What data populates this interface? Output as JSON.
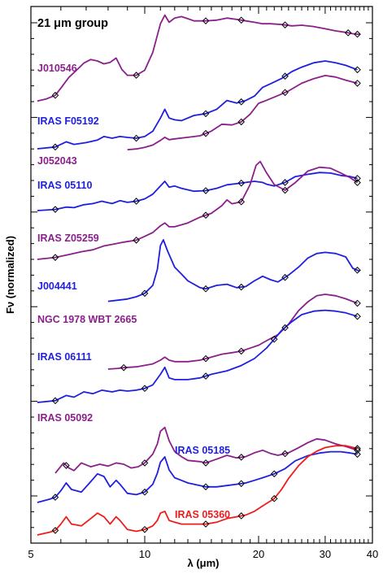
{
  "chart_data": {
    "type": "line",
    "title": "21 μm group",
    "xlabel": "λ (μm)",
    "ylabel": "Fν (normalized)",
    "x_scale": "log",
    "xlim": [
      5,
      40
    ],
    "x_ticks": [
      5,
      10,
      20,
      30,
      40
    ],
    "y_ticks": "none",
    "colors": {
      "purple": "#8b1f8b",
      "blue": "#1f1fe0",
      "red": "#ee1c1c"
    },
    "marker": "open-diamond",
    "series": [
      {
        "name": "J010546",
        "color": "purple",
        "marker_x": [
          5.8,
          9.5,
          14.5,
          18.0,
          23.5,
          34.5,
          36.5
        ],
        "x": [
          5.2,
          5.5,
          5.8,
          6.0,
          6.3,
          6.6,
          6.9,
          7.2,
          7.5,
          7.8,
          8.1,
          8.4,
          8.7,
          9.0,
          9.5,
          10.0,
          10.5,
          11.0,
          11.3,
          11.6,
          12.0,
          12.5,
          13.0,
          13.5,
          14.5,
          15.5,
          16.5,
          17.5,
          18.5,
          19.5,
          20.5,
          21.5,
          23.0,
          24.5,
          26.0,
          28.0,
          30.0,
          32.0,
          34.0,
          35.5,
          37.0
        ],
        "y": [
          0.02,
          0.05,
          0.1,
          0.2,
          0.35,
          0.45,
          0.55,
          0.6,
          0.58,
          0.54,
          0.56,
          0.62,
          0.46,
          0.38,
          0.38,
          0.45,
          0.7,
          1.1,
          1.22,
          1.12,
          1.18,
          1.2,
          1.17,
          1.14,
          1.14,
          1.15,
          1.18,
          1.16,
          1.14,
          1.12,
          1.1,
          1.1,
          1.09,
          1.07,
          1.08,
          1.06,
          1.03,
          1.0,
          0.98,
          0.96,
          0.95
        ]
      },
      {
        "name": "IRAS F05192",
        "color": "blue",
        "marker_x": [
          5.8,
          9.5,
          14.5,
          18.0,
          23.5,
          36.5
        ],
        "x": [
          5.2,
          5.8,
          6.2,
          6.5,
          7.0,
          7.5,
          7.8,
          8.2,
          8.6,
          9.0,
          9.5,
          10.0,
          10.5,
          11.0,
          11.3,
          11.6,
          12.0,
          12.5,
          13.5,
          14.5,
          15.5,
          16.5,
          17.5,
          18.5,
          19.5,
          20.5,
          21.5,
          23.0,
          24.5,
          26.0,
          28.0,
          30.0,
          32.0,
          34.0,
          36.5
        ],
        "y": [
          0.0,
          0.02,
          0.08,
          0.05,
          0.07,
          0.1,
          0.14,
          0.12,
          0.14,
          0.13,
          0.12,
          0.14,
          0.2,
          0.35,
          0.45,
          0.35,
          0.33,
          0.32,
          0.38,
          0.4,
          0.45,
          0.55,
          0.52,
          0.55,
          0.6,
          0.7,
          0.74,
          0.8,
          0.88,
          0.93,
          0.98,
          1.0,
          0.98,
          0.95,
          0.9
        ]
      },
      {
        "name": "J052043",
        "color": "purple",
        "marker_x": [
          14.5,
          18.0,
          23.5,
          36.5
        ],
        "x": [
          9.0,
          9.5,
          10.0,
          10.5,
          11.0,
          11.3,
          11.6,
          12.0,
          13.0,
          14.0,
          15.0,
          16.0,
          17.0,
          18.0,
          19.0,
          20.0,
          21.0,
          22.5,
          24.0,
          26.0,
          28.0,
          30.0,
          32.0,
          34.0,
          36.5
        ],
        "y": [
          0.02,
          0.03,
          0.05,
          0.08,
          0.14,
          0.18,
          0.15,
          0.16,
          0.18,
          0.2,
          0.26,
          0.35,
          0.34,
          0.38,
          0.48,
          0.62,
          0.66,
          0.72,
          0.78,
          0.88,
          0.94,
          0.98,
          0.96,
          0.92,
          0.88
        ]
      },
      {
        "name": "IRAS 05110",
        "color": "blue",
        "marker_x": [
          5.8,
          9.5,
          14.5,
          18.0,
          23.5,
          36.5
        ],
        "x": [
          5.2,
          5.8,
          6.2,
          6.5,
          6.9,
          7.3,
          7.7,
          8.2,
          8.6,
          9.0,
          9.5,
          10.0,
          10.5,
          11.0,
          11.3,
          11.6,
          12.0,
          12.5,
          13.5,
          14.5,
          15.5,
          16.5,
          17.5,
          18.5,
          19.5,
          20.5,
          21.0,
          22.0,
          23.5,
          25.0,
          27.0,
          29.0,
          31.0,
          33.0,
          35.0,
          36.5
        ],
        "y": [
          0.0,
          0.02,
          0.06,
          0.05,
          0.1,
          0.12,
          0.16,
          0.12,
          0.17,
          0.14,
          0.16,
          0.2,
          0.28,
          0.42,
          0.5,
          0.4,
          0.42,
          0.38,
          0.33,
          0.34,
          0.38,
          0.44,
          0.46,
          0.48,
          0.5,
          0.48,
          0.45,
          0.42,
          0.48,
          0.58,
          0.62,
          0.65,
          0.64,
          0.6,
          0.58,
          0.55
        ]
      },
      {
        "name": "IRAS Z05259",
        "color": "purple",
        "marker_x": [
          5.8,
          9.5,
          14.5,
          18.0,
          23.5,
          36.5
        ],
        "x": [
          5.2,
          5.8,
          6.3,
          6.8,
          7.3,
          7.8,
          8.3,
          8.8,
          9.5,
          10.0,
          10.5,
          11.0,
          11.3,
          11.6,
          12.0,
          13.0,
          14.0,
          15.0,
          16.0,
          16.5,
          17.0,
          18.0,
          19.0,
          19.7,
          20.2,
          21.0,
          22.0,
          23.5,
          25.0,
          27.0,
          29.0,
          31.0,
          33.0,
          35.0,
          36.5
        ],
        "y": [
          0.0,
          0.02,
          0.05,
          0.08,
          0.1,
          0.14,
          0.16,
          0.18,
          0.2,
          0.24,
          0.28,
          0.35,
          0.38,
          0.34,
          0.34,
          0.38,
          0.44,
          0.48,
          0.56,
          0.62,
          0.58,
          0.6,
          0.78,
          0.98,
          1.02,
          0.9,
          0.78,
          0.72,
          0.8,
          0.92,
          0.96,
          0.95,
          0.9,
          0.85,
          0.8
        ]
      },
      {
        "name": "J004441",
        "color": "blue",
        "marker_x": [
          10.0,
          14.5,
          18.0,
          23.5,
          36.5
        ],
        "x": [
          8.0,
          8.5,
          9.0,
          9.5,
          10.0,
          10.5,
          10.8,
          11.0,
          11.2,
          11.5,
          12.0,
          12.5,
          13.0,
          14.0,
          14.5,
          15.5,
          16.5,
          17.5,
          18.5,
          19.5,
          20.5,
          21.5,
          22.5,
          24.0,
          25.5,
          27.0,
          28.5,
          30.0,
          32.0,
          34.0,
          35.5,
          37.0
        ],
        "y": [
          0.02,
          0.04,
          0.06,
          0.1,
          0.16,
          0.3,
          0.58,
          1.0,
          1.1,
          0.9,
          0.62,
          0.5,
          0.38,
          0.26,
          0.24,
          0.3,
          0.32,
          0.26,
          0.28,
          0.38,
          0.46,
          0.4,
          0.36,
          0.48,
          0.62,
          0.78,
          0.86,
          0.88,
          0.86,
          0.8,
          0.6,
          0.55
        ]
      },
      {
        "name": "NGC 1978 WBT 2665",
        "color": "purple",
        "marker_x": [
          8.8,
          14.5,
          18.0,
          23.5,
          36.5
        ],
        "x": [
          8.0,
          8.5,
          8.8,
          9.5,
          10.0,
          10.5,
          11.0,
          11.3,
          11.6,
          12.0,
          13.0,
          14.0,
          15.0,
          16.0,
          17.0,
          18.0,
          19.0,
          20.0,
          21.0,
          22.5,
          24.0,
          25.5,
          27.0,
          28.5,
          30.0,
          32.0,
          34.0,
          36.5
        ],
        "y": [
          0.0,
          0.01,
          0.02,
          0.03,
          0.05,
          0.07,
          0.12,
          0.16,
          0.12,
          0.1,
          0.1,
          0.12,
          0.16,
          0.2,
          0.22,
          0.24,
          0.28,
          0.32,
          0.38,
          0.46,
          0.6,
          0.78,
          0.9,
          0.98,
          1.0,
          0.98,
          0.94,
          0.88
        ]
      },
      {
        "name": "IRAS 06111",
        "color": "blue",
        "marker_x": [
          5.8,
          10.0,
          14.5,
          22.0,
          36.5
        ],
        "x": [
          5.2,
          5.8,
          6.2,
          6.5,
          6.9,
          7.3,
          7.7,
          8.2,
          8.6,
          9.0,
          9.5,
          10.0,
          10.5,
          11.0,
          11.3,
          11.6,
          12.0,
          13.0,
          14.0,
          15.0,
          16.5,
          18.0,
          19.5,
          21.0,
          22.0,
          23.0,
          24.5,
          26.0,
          28.0,
          30.0,
          32.0,
          34.0,
          36.5
        ],
        "y": [
          0.0,
          0.02,
          0.08,
          0.06,
          0.12,
          0.1,
          0.14,
          0.12,
          0.14,
          0.13,
          0.14,
          0.16,
          0.2,
          0.32,
          0.4,
          0.28,
          0.26,
          0.26,
          0.28,
          0.32,
          0.36,
          0.42,
          0.5,
          0.62,
          0.72,
          0.82,
          0.92,
          1.0,
          1.04,
          1.05,
          1.04,
          1.02,
          0.98
        ]
      },
      {
        "name": "IRAS 05092",
        "color": "purple",
        "marker_x": [
          6.2,
          10.0,
          14.5,
          18.0,
          23.5,
          36.5
        ],
        "x": [
          5.8,
          6.1,
          6.3,
          6.5,
          6.8,
          7.2,
          7.6,
          8.0,
          8.4,
          8.8,
          9.2,
          9.6,
          10.0,
          10.5,
          10.8,
          11.0,
          11.3,
          11.6,
          12.0,
          12.5,
          13.0,
          14.0,
          14.5,
          15.5,
          16.5,
          17.5,
          18.5,
          19.5,
          20.5,
          21.5,
          22.5,
          24.0,
          25.5,
          27.0,
          28.5,
          30.0,
          32.0,
          34.0,
          36.5
        ],
        "y": [
          0.04,
          0.2,
          0.12,
          0.08,
          0.2,
          0.14,
          0.18,
          0.15,
          0.2,
          0.18,
          0.12,
          0.14,
          0.2,
          0.34,
          0.5,
          0.7,
          0.76,
          0.55,
          0.38,
          0.3,
          0.24,
          0.22,
          0.2,
          0.26,
          0.32,
          0.28,
          0.3,
          0.36,
          0.4,
          0.35,
          0.32,
          0.36,
          0.44,
          0.52,
          0.58,
          0.56,
          0.5,
          0.46,
          0.4
        ]
      },
      {
        "name": "IRAS 05185",
        "color": "blue",
        "marker_x": [
          5.8,
          10.0,
          14.5,
          18.0,
          22.0,
          36.5
        ],
        "x": [
          5.2,
          5.6,
          5.8,
          6.0,
          6.2,
          6.4,
          6.8,
          7.2,
          7.5,
          7.8,
          8.1,
          8.4,
          8.6,
          9.0,
          9.5,
          10.0,
          10.5,
          10.8,
          11.0,
          11.3,
          11.6,
          12.0,
          12.5,
          13.0,
          14.0,
          14.5,
          15.5,
          16.5,
          17.5,
          18.5,
          19.5,
          20.5,
          22.0,
          23.5,
          25.0,
          27.0,
          29.0,
          31.0,
          33.0,
          35.0,
          36.5
        ],
        "y": [
          0.0,
          0.05,
          0.08,
          0.18,
          0.3,
          0.2,
          0.16,
          0.32,
          0.44,
          0.4,
          0.24,
          0.34,
          0.28,
          0.14,
          0.12,
          0.16,
          0.28,
          0.45,
          0.62,
          0.7,
          0.5,
          0.38,
          0.34,
          0.3,
          0.26,
          0.24,
          0.24,
          0.26,
          0.28,
          0.3,
          0.34,
          0.38,
          0.44,
          0.52,
          0.64,
          0.72,
          0.76,
          0.78,
          0.78,
          0.76,
          0.74
        ]
      },
      {
        "name": "IRAS 05360",
        "color": "red",
        "marker_x": [
          5.8,
          10.0,
          14.5,
          18.0,
          22.0,
          36.5
        ],
        "x": [
          5.2,
          5.6,
          5.8,
          6.0,
          6.2,
          6.4,
          6.8,
          7.2,
          7.5,
          7.8,
          8.1,
          8.4,
          8.6,
          9.0,
          9.5,
          10.0,
          10.5,
          10.8,
          11.0,
          11.3,
          11.6,
          12.0,
          12.5,
          13.0,
          14.0,
          14.5,
          15.5,
          16.5,
          17.5,
          18.5,
          19.5,
          20.5,
          22.0,
          23.0,
          24.0,
          25.5,
          27.0,
          28.5,
          30.0,
          32.0,
          34.0,
          36.5
        ],
        "y": [
          0.0,
          0.03,
          0.05,
          0.12,
          0.2,
          0.12,
          0.1,
          0.18,
          0.24,
          0.2,
          0.12,
          0.2,
          0.16,
          0.06,
          0.04,
          0.06,
          0.1,
          0.16,
          0.24,
          0.26,
          0.16,
          0.14,
          0.12,
          0.12,
          0.12,
          0.12,
          0.14,
          0.18,
          0.2,
          0.22,
          0.26,
          0.32,
          0.4,
          0.5,
          0.62,
          0.76,
          0.86,
          0.92,
          0.96,
          0.98,
          0.98,
          0.95
        ]
      }
    ]
  }
}
